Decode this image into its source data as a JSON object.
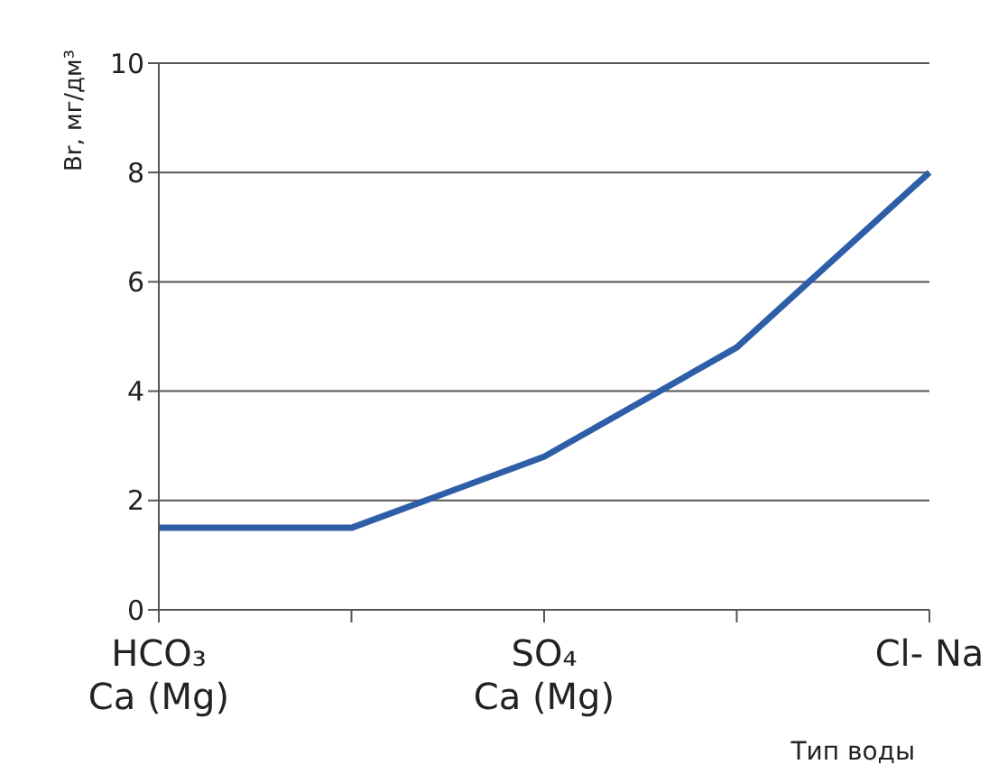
{
  "chart_data": {
    "type": "line",
    "ylabel": "Br, мг/дм³",
    "xlabel": "Тип воды",
    "categories": [
      "HCO₃\nCa (Mg)",
      null,
      "SO₄\nCa (Mg)",
      null,
      "Cl- Na"
    ],
    "series": [
      {
        "color": "#2e5ea8",
        "values": [
          1.5,
          1.5,
          2.8,
          4.8,
          8
        ]
      }
    ],
    "ylim": [
      0,
      10
    ],
    "yticks": [
      0,
      2,
      4,
      6,
      8,
      10
    ],
    "grid": "y",
    "legend": false,
    "marker": "none",
    "line_style": "solid"
  }
}
